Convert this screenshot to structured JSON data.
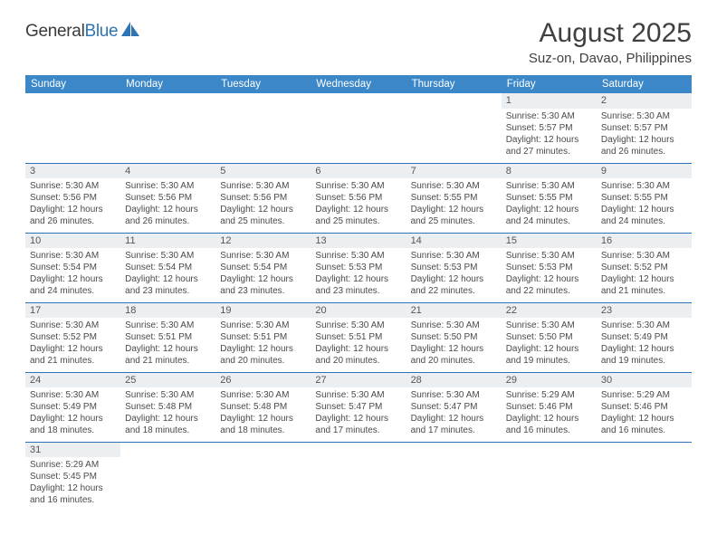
{
  "brand": {
    "name_a": "General",
    "name_b": "Blue"
  },
  "title": "August 2025",
  "location": "Suz-on, Davao, Philippines",
  "colors": {
    "header_bg": "#3b87c8",
    "header_text": "#ffffff",
    "rule": "#2e74b5",
    "daynum_bg": "#eceff1",
    "body_text": "#4a4a4a",
    "page_bg": "#ffffff"
  },
  "weekdays": [
    "Sunday",
    "Monday",
    "Tuesday",
    "Wednesday",
    "Thursday",
    "Friday",
    "Saturday"
  ],
  "weeks": [
    [
      null,
      null,
      null,
      null,
      null,
      {
        "n": "1",
        "sr": "Sunrise: 5:30 AM",
        "ss": "Sunset: 5:57 PM",
        "d1": "Daylight: 12 hours",
        "d2": "and 27 minutes."
      },
      {
        "n": "2",
        "sr": "Sunrise: 5:30 AM",
        "ss": "Sunset: 5:57 PM",
        "d1": "Daylight: 12 hours",
        "d2": "and 26 minutes."
      }
    ],
    [
      {
        "n": "3",
        "sr": "Sunrise: 5:30 AM",
        "ss": "Sunset: 5:56 PM",
        "d1": "Daylight: 12 hours",
        "d2": "and 26 minutes."
      },
      {
        "n": "4",
        "sr": "Sunrise: 5:30 AM",
        "ss": "Sunset: 5:56 PM",
        "d1": "Daylight: 12 hours",
        "d2": "and 26 minutes."
      },
      {
        "n": "5",
        "sr": "Sunrise: 5:30 AM",
        "ss": "Sunset: 5:56 PM",
        "d1": "Daylight: 12 hours",
        "d2": "and 25 minutes."
      },
      {
        "n": "6",
        "sr": "Sunrise: 5:30 AM",
        "ss": "Sunset: 5:56 PM",
        "d1": "Daylight: 12 hours",
        "d2": "and 25 minutes."
      },
      {
        "n": "7",
        "sr": "Sunrise: 5:30 AM",
        "ss": "Sunset: 5:55 PM",
        "d1": "Daylight: 12 hours",
        "d2": "and 25 minutes."
      },
      {
        "n": "8",
        "sr": "Sunrise: 5:30 AM",
        "ss": "Sunset: 5:55 PM",
        "d1": "Daylight: 12 hours",
        "d2": "and 24 minutes."
      },
      {
        "n": "9",
        "sr": "Sunrise: 5:30 AM",
        "ss": "Sunset: 5:55 PM",
        "d1": "Daylight: 12 hours",
        "d2": "and 24 minutes."
      }
    ],
    [
      {
        "n": "10",
        "sr": "Sunrise: 5:30 AM",
        "ss": "Sunset: 5:54 PM",
        "d1": "Daylight: 12 hours",
        "d2": "and 24 minutes."
      },
      {
        "n": "11",
        "sr": "Sunrise: 5:30 AM",
        "ss": "Sunset: 5:54 PM",
        "d1": "Daylight: 12 hours",
        "d2": "and 23 minutes."
      },
      {
        "n": "12",
        "sr": "Sunrise: 5:30 AM",
        "ss": "Sunset: 5:54 PM",
        "d1": "Daylight: 12 hours",
        "d2": "and 23 minutes."
      },
      {
        "n": "13",
        "sr": "Sunrise: 5:30 AM",
        "ss": "Sunset: 5:53 PM",
        "d1": "Daylight: 12 hours",
        "d2": "and 23 minutes."
      },
      {
        "n": "14",
        "sr": "Sunrise: 5:30 AM",
        "ss": "Sunset: 5:53 PM",
        "d1": "Daylight: 12 hours",
        "d2": "and 22 minutes."
      },
      {
        "n": "15",
        "sr": "Sunrise: 5:30 AM",
        "ss": "Sunset: 5:53 PM",
        "d1": "Daylight: 12 hours",
        "d2": "and 22 minutes."
      },
      {
        "n": "16",
        "sr": "Sunrise: 5:30 AM",
        "ss": "Sunset: 5:52 PM",
        "d1": "Daylight: 12 hours",
        "d2": "and 21 minutes."
      }
    ],
    [
      {
        "n": "17",
        "sr": "Sunrise: 5:30 AM",
        "ss": "Sunset: 5:52 PM",
        "d1": "Daylight: 12 hours",
        "d2": "and 21 minutes."
      },
      {
        "n": "18",
        "sr": "Sunrise: 5:30 AM",
        "ss": "Sunset: 5:51 PM",
        "d1": "Daylight: 12 hours",
        "d2": "and 21 minutes."
      },
      {
        "n": "19",
        "sr": "Sunrise: 5:30 AM",
        "ss": "Sunset: 5:51 PM",
        "d1": "Daylight: 12 hours",
        "d2": "and 20 minutes."
      },
      {
        "n": "20",
        "sr": "Sunrise: 5:30 AM",
        "ss": "Sunset: 5:51 PM",
        "d1": "Daylight: 12 hours",
        "d2": "and 20 minutes."
      },
      {
        "n": "21",
        "sr": "Sunrise: 5:30 AM",
        "ss": "Sunset: 5:50 PM",
        "d1": "Daylight: 12 hours",
        "d2": "and 20 minutes."
      },
      {
        "n": "22",
        "sr": "Sunrise: 5:30 AM",
        "ss": "Sunset: 5:50 PM",
        "d1": "Daylight: 12 hours",
        "d2": "and 19 minutes."
      },
      {
        "n": "23",
        "sr": "Sunrise: 5:30 AM",
        "ss": "Sunset: 5:49 PM",
        "d1": "Daylight: 12 hours",
        "d2": "and 19 minutes."
      }
    ],
    [
      {
        "n": "24",
        "sr": "Sunrise: 5:30 AM",
        "ss": "Sunset: 5:49 PM",
        "d1": "Daylight: 12 hours",
        "d2": "and 18 minutes."
      },
      {
        "n": "25",
        "sr": "Sunrise: 5:30 AM",
        "ss": "Sunset: 5:48 PM",
        "d1": "Daylight: 12 hours",
        "d2": "and 18 minutes."
      },
      {
        "n": "26",
        "sr": "Sunrise: 5:30 AM",
        "ss": "Sunset: 5:48 PM",
        "d1": "Daylight: 12 hours",
        "d2": "and 18 minutes."
      },
      {
        "n": "27",
        "sr": "Sunrise: 5:30 AM",
        "ss": "Sunset: 5:47 PM",
        "d1": "Daylight: 12 hours",
        "d2": "and 17 minutes."
      },
      {
        "n": "28",
        "sr": "Sunrise: 5:30 AM",
        "ss": "Sunset: 5:47 PM",
        "d1": "Daylight: 12 hours",
        "d2": "and 17 minutes."
      },
      {
        "n": "29",
        "sr": "Sunrise: 5:29 AM",
        "ss": "Sunset: 5:46 PM",
        "d1": "Daylight: 12 hours",
        "d2": "and 16 minutes."
      },
      {
        "n": "30",
        "sr": "Sunrise: 5:29 AM",
        "ss": "Sunset: 5:46 PM",
        "d1": "Daylight: 12 hours",
        "d2": "and 16 minutes."
      }
    ],
    [
      {
        "n": "31",
        "sr": "Sunrise: 5:29 AM",
        "ss": "Sunset: 5:45 PM",
        "d1": "Daylight: 12 hours",
        "d2": "and 16 minutes."
      },
      null,
      null,
      null,
      null,
      null,
      null
    ]
  ]
}
